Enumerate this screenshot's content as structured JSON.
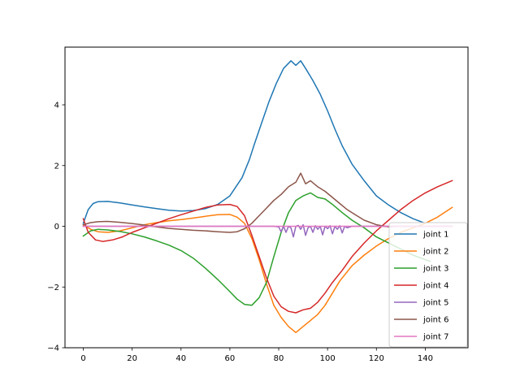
{
  "chart_data": {
    "type": "line",
    "title": "",
    "xlabel": "",
    "ylabel": "",
    "xlim": [
      -7.5,
      157.5
    ],
    "ylim": [
      -4,
      5.9
    ],
    "xticks": [
      0,
      20,
      40,
      60,
      80,
      100,
      120,
      140
    ],
    "yticks": [
      -4,
      -2,
      0,
      2,
      4
    ],
    "grid": false,
    "legend_position": "lower-right",
    "series": [
      {
        "name": "joint 1",
        "color": "#1f77b4",
        "points": [
          [
            0,
            0.1
          ],
          [
            2,
            0.55
          ],
          [
            4,
            0.75
          ],
          [
            6,
            0.81
          ],
          [
            10,
            0.82
          ],
          [
            15,
            0.77
          ],
          [
            20,
            0.7
          ],
          [
            25,
            0.64
          ],
          [
            30,
            0.58
          ],
          [
            35,
            0.53
          ],
          [
            40,
            0.5
          ],
          [
            45,
            0.52
          ],
          [
            50,
            0.58
          ],
          [
            55,
            0.72
          ],
          [
            60,
            1.0
          ],
          [
            65,
            1.6
          ],
          [
            68,
            2.2
          ],
          [
            70,
            2.7
          ],
          [
            73,
            3.4
          ],
          [
            76,
            4.1
          ],
          [
            79,
            4.7
          ],
          [
            82,
            5.2
          ],
          [
            85,
            5.45
          ],
          [
            87,
            5.3
          ],
          [
            89,
            5.45
          ],
          [
            91,
            5.2
          ],
          [
            94,
            4.8
          ],
          [
            97,
            4.35
          ],
          [
            100,
            3.8
          ],
          [
            103,
            3.2
          ],
          [
            106,
            2.65
          ],
          [
            110,
            2.05
          ],
          [
            115,
            1.5
          ],
          [
            120,
            1.0
          ],
          [
            125,
            0.7
          ],
          [
            130,
            0.45
          ],
          [
            135,
            0.25
          ],
          [
            140,
            0.1
          ]
        ]
      },
      {
        "name": "joint 2",
        "color": "#ff7f0e",
        "points": [
          [
            0,
            0.05
          ],
          [
            3,
            -0.1
          ],
          [
            6,
            -0.18
          ],
          [
            10,
            -0.2
          ],
          [
            15,
            -0.15
          ],
          [
            20,
            -0.05
          ],
          [
            25,
            0.05
          ],
          [
            30,
            0.12
          ],
          [
            35,
            0.18
          ],
          [
            40,
            0.22
          ],
          [
            45,
            0.27
          ],
          [
            50,
            0.33
          ],
          [
            55,
            0.38
          ],
          [
            60,
            0.39
          ],
          [
            63,
            0.3
          ],
          [
            66,
            0.1
          ],
          [
            69,
            -0.4
          ],
          [
            72,
            -1.1
          ],
          [
            75,
            -1.9
          ],
          [
            78,
            -2.6
          ],
          [
            81,
            -3.0
          ],
          [
            84,
            -3.3
          ],
          [
            87,
            -3.5
          ],
          [
            90,
            -3.3
          ],
          [
            93,
            -3.1
          ],
          [
            96,
            -2.9
          ],
          [
            99,
            -2.6
          ],
          [
            102,
            -2.2
          ],
          [
            105,
            -1.8
          ],
          [
            110,
            -1.3
          ],
          [
            115,
            -0.95
          ],
          [
            120,
            -0.65
          ],
          [
            125,
            -0.4
          ],
          [
            130,
            -0.2
          ],
          [
            135,
            -0.05
          ],
          [
            140,
            0.1
          ],
          [
            145,
            0.3
          ],
          [
            151,
            0.62
          ]
        ]
      },
      {
        "name": "joint 3",
        "color": "#2ca02c",
        "points": [
          [
            0,
            -0.32
          ],
          [
            3,
            -0.15
          ],
          [
            6,
            -0.1
          ],
          [
            10,
            -0.12
          ],
          [
            15,
            -0.17
          ],
          [
            20,
            -0.25
          ],
          [
            25,
            -0.35
          ],
          [
            30,
            -0.48
          ],
          [
            35,
            -0.62
          ],
          [
            40,
            -0.8
          ],
          [
            45,
            -1.05
          ],
          [
            50,
            -1.38
          ],
          [
            55,
            -1.75
          ],
          [
            60,
            -2.15
          ],
          [
            63,
            -2.4
          ],
          [
            66,
            -2.57
          ],
          [
            69,
            -2.6
          ],
          [
            72,
            -2.35
          ],
          [
            75,
            -1.85
          ],
          [
            78,
            -1.0
          ],
          [
            81,
            -0.2
          ],
          [
            84,
            0.45
          ],
          [
            87,
            0.85
          ],
          [
            90,
            1.0
          ],
          [
            93,
            1.1
          ],
          [
            96,
            0.95
          ],
          [
            99,
            0.9
          ],
          [
            102,
            0.72
          ],
          [
            106,
            0.45
          ],
          [
            110,
            0.2
          ],
          [
            115,
            -0.05
          ],
          [
            120,
            -0.35
          ],
          [
            125,
            -0.55
          ],
          [
            130,
            -0.75
          ],
          [
            135,
            -0.95
          ],
          [
            140,
            -1.1
          ],
          [
            142,
            -1.15
          ]
        ]
      },
      {
        "name": "joint 4",
        "color": "#d62728",
        "points": [
          [
            0,
            0.25
          ],
          [
            2,
            -0.2
          ],
          [
            5,
            -0.45
          ],
          [
            8,
            -0.5
          ],
          [
            12,
            -0.45
          ],
          [
            16,
            -0.35
          ],
          [
            20,
            -0.2
          ],
          [
            25,
            -0.05
          ],
          [
            30,
            0.1
          ],
          [
            35,
            0.25
          ],
          [
            40,
            0.38
          ],
          [
            45,
            0.5
          ],
          [
            50,
            0.62
          ],
          [
            55,
            0.7
          ],
          [
            60,
            0.72
          ],
          [
            63,
            0.65
          ],
          [
            66,
            0.35
          ],
          [
            69,
            -0.3
          ],
          [
            72,
            -1.0
          ],
          [
            75,
            -1.7
          ],
          [
            78,
            -2.3
          ],
          [
            81,
            -2.65
          ],
          [
            84,
            -2.8
          ],
          [
            87,
            -2.85
          ],
          [
            90,
            -2.75
          ],
          [
            93,
            -2.7
          ],
          [
            96,
            -2.5
          ],
          [
            99,
            -2.2
          ],
          [
            102,
            -1.85
          ],
          [
            106,
            -1.45
          ],
          [
            110,
            -1.0
          ],
          [
            115,
            -0.55
          ],
          [
            120,
            -0.15
          ],
          [
            125,
            0.2
          ],
          [
            130,
            0.55
          ],
          [
            135,
            0.85
          ],
          [
            140,
            1.1
          ],
          [
            145,
            1.3
          ],
          [
            151,
            1.5
          ]
        ]
      },
      {
        "name": "joint 5",
        "color": "#9467bd",
        "points": [
          [
            0,
            0.0
          ],
          [
            78,
            0.0
          ],
          [
            80,
            -0.02
          ],
          [
            81,
            -0.18
          ],
          [
            82,
            0.0
          ],
          [
            83,
            -0.2
          ],
          [
            84,
            0.0
          ],
          [
            85,
            -0.05
          ],
          [
            86,
            -0.35
          ],
          [
            87,
            0.0
          ],
          [
            88,
            0.03
          ],
          [
            89,
            -0.1
          ],
          [
            90,
            0.05
          ],
          [
            91,
            -0.3
          ],
          [
            92,
            -0.05
          ],
          [
            93,
            0.0
          ],
          [
            94,
            -0.2
          ],
          [
            95,
            0.02
          ],
          [
            96,
            -0.1
          ],
          [
            97,
            0.0
          ],
          [
            98,
            -0.28
          ],
          [
            99,
            0.0
          ],
          [
            100,
            -0.08
          ],
          [
            101,
            0.02
          ],
          [
            102,
            -0.25
          ],
          [
            103,
            0.0
          ],
          [
            104,
            -0.1
          ],
          [
            105,
            0.02
          ],
          [
            106,
            -0.22
          ],
          [
            107,
            0.0
          ],
          [
            108,
            -0.05
          ],
          [
            110,
            0.0
          ],
          [
            151,
            0.0
          ]
        ]
      },
      {
        "name": "joint 6",
        "color": "#8c564b",
        "points": [
          [
            0,
            0.05
          ],
          [
            3,
            0.12
          ],
          [
            6,
            0.15
          ],
          [
            10,
            0.16
          ],
          [
            15,
            0.13
          ],
          [
            20,
            0.09
          ],
          [
            25,
            0.04
          ],
          [
            30,
            -0.02
          ],
          [
            35,
            -0.07
          ],
          [
            40,
            -0.1
          ],
          [
            45,
            -0.13
          ],
          [
            50,
            -0.15
          ],
          [
            55,
            -0.18
          ],
          [
            60,
            -0.2
          ],
          [
            63,
            -0.18
          ],
          [
            66,
            -0.08
          ],
          [
            69,
            0.1
          ],
          [
            72,
            0.35
          ],
          [
            75,
            0.6
          ],
          [
            78,
            0.85
          ],
          [
            81,
            1.05
          ],
          [
            84,
            1.3
          ],
          [
            87,
            1.45
          ],
          [
            89,
            1.75
          ],
          [
            91,
            1.4
          ],
          [
            93,
            1.5
          ],
          [
            96,
            1.3
          ],
          [
            99,
            1.15
          ],
          [
            102,
            0.95
          ],
          [
            105,
            0.75
          ],
          [
            108,
            0.55
          ],
          [
            111,
            0.4
          ],
          [
            115,
            0.2
          ],
          [
            120,
            0.05
          ],
          [
            125,
            -0.02
          ],
          [
            128,
            0.0
          ]
        ]
      },
      {
        "name": "joint 7",
        "color": "#e377c2",
        "points": [
          [
            0,
            0.0
          ],
          [
            151,
            0.0
          ]
        ]
      }
    ]
  }
}
